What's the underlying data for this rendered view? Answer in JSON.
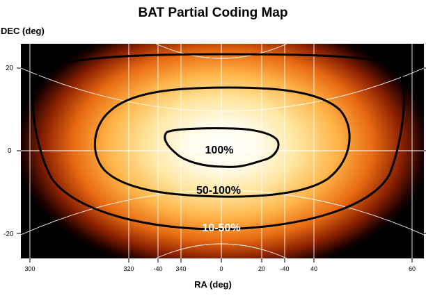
{
  "chart_data": {
    "type": "heatmap",
    "title": "BAT Partial Coding Map",
    "xlabel": "RA (deg)",
    "ylabel": "DEC (deg)",
    "y_ticks": [
      20,
      0,
      -20
    ],
    "y_tick_labels": [
      "20",
      "0",
      "-20"
    ],
    "x_tick_labels": [
      "300",
      "320",
      "-40",
      "340",
      "0",
      "20",
      "-40",
      "40",
      "60"
    ],
    "contours": [
      {
        "level": "100%",
        "label": "100%"
      },
      {
        "level": "50-100%",
        "label": "50-100%"
      },
      {
        "level": "10-50%",
        "label": "10-50%"
      }
    ],
    "colormap": [
      "#000000",
      "#6a1200",
      "#e05500",
      "#ffa020",
      "#ffe8a0",
      "#ffffff"
    ],
    "grid": true
  }
}
